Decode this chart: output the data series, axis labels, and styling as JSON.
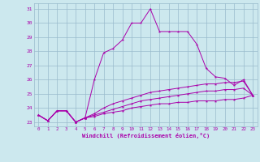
{
  "xlabel": "Windchill (Refroidissement éolien,°C)",
  "ylabel": "",
  "bg_color": "#cce8ee",
  "line_color": "#aa00aa",
  "grid_color": "#99bbcc",
  "xlim": [
    -0.5,
    23.5
  ],
  "ylim": [
    22.7,
    31.4
  ],
  "yticks": [
    23,
    24,
    25,
    26,
    27,
    28,
    29,
    30,
    31
  ],
  "xticks": [
    0,
    1,
    2,
    3,
    4,
    5,
    6,
    7,
    8,
    9,
    10,
    11,
    12,
    13,
    14,
    15,
    16,
    17,
    18,
    19,
    20,
    21,
    22,
    23
  ],
  "line1_x": [
    0,
    1,
    2,
    3,
    4,
    5,
    6,
    7,
    8,
    9,
    10,
    11,
    12,
    13,
    14,
    15,
    16,
    17,
    18,
    19,
    20,
    21,
    22,
    23
  ],
  "line1_y": [
    23.5,
    23.1,
    23.8,
    23.8,
    23.0,
    23.3,
    26.0,
    27.9,
    28.2,
    28.8,
    30.0,
    30.0,
    31.0,
    29.4,
    29.4,
    29.4,
    29.4,
    28.5,
    26.8,
    26.2,
    26.1,
    25.6,
    26.0,
    24.9
  ],
  "line2_x": [
    0,
    1,
    2,
    3,
    4,
    5,
    6,
    7,
    8,
    9,
    10,
    11,
    12,
    13,
    14,
    15,
    16,
    17,
    18,
    19,
    20,
    21,
    22,
    23
  ],
  "line2_y": [
    23.5,
    23.1,
    23.8,
    23.8,
    23.0,
    23.3,
    23.6,
    24.0,
    24.3,
    24.5,
    24.7,
    24.9,
    25.1,
    25.2,
    25.3,
    25.4,
    25.5,
    25.6,
    25.7,
    25.7,
    25.8,
    25.8,
    25.9,
    24.9
  ],
  "line3_x": [
    0,
    1,
    2,
    3,
    4,
    5,
    6,
    7,
    8,
    9,
    10,
    11,
    12,
    13,
    14,
    15,
    16,
    17,
    18,
    19,
    20,
    21,
    22,
    23
  ],
  "line3_y": [
    23.5,
    23.1,
    23.8,
    23.8,
    23.0,
    23.3,
    23.5,
    23.7,
    23.9,
    24.1,
    24.3,
    24.5,
    24.6,
    24.7,
    24.8,
    24.9,
    25.0,
    25.1,
    25.2,
    25.2,
    25.3,
    25.3,
    25.4,
    24.9
  ],
  "line4_x": [
    0,
    1,
    2,
    3,
    4,
    5,
    6,
    7,
    8,
    9,
    10,
    11,
    12,
    13,
    14,
    15,
    16,
    17,
    18,
    19,
    20,
    21,
    22,
    23
  ],
  "line4_y": [
    23.5,
    23.1,
    23.8,
    23.8,
    23.0,
    23.3,
    23.4,
    23.6,
    23.7,
    23.8,
    24.0,
    24.1,
    24.2,
    24.3,
    24.3,
    24.4,
    24.4,
    24.5,
    24.5,
    24.5,
    24.6,
    24.6,
    24.7,
    24.9
  ]
}
